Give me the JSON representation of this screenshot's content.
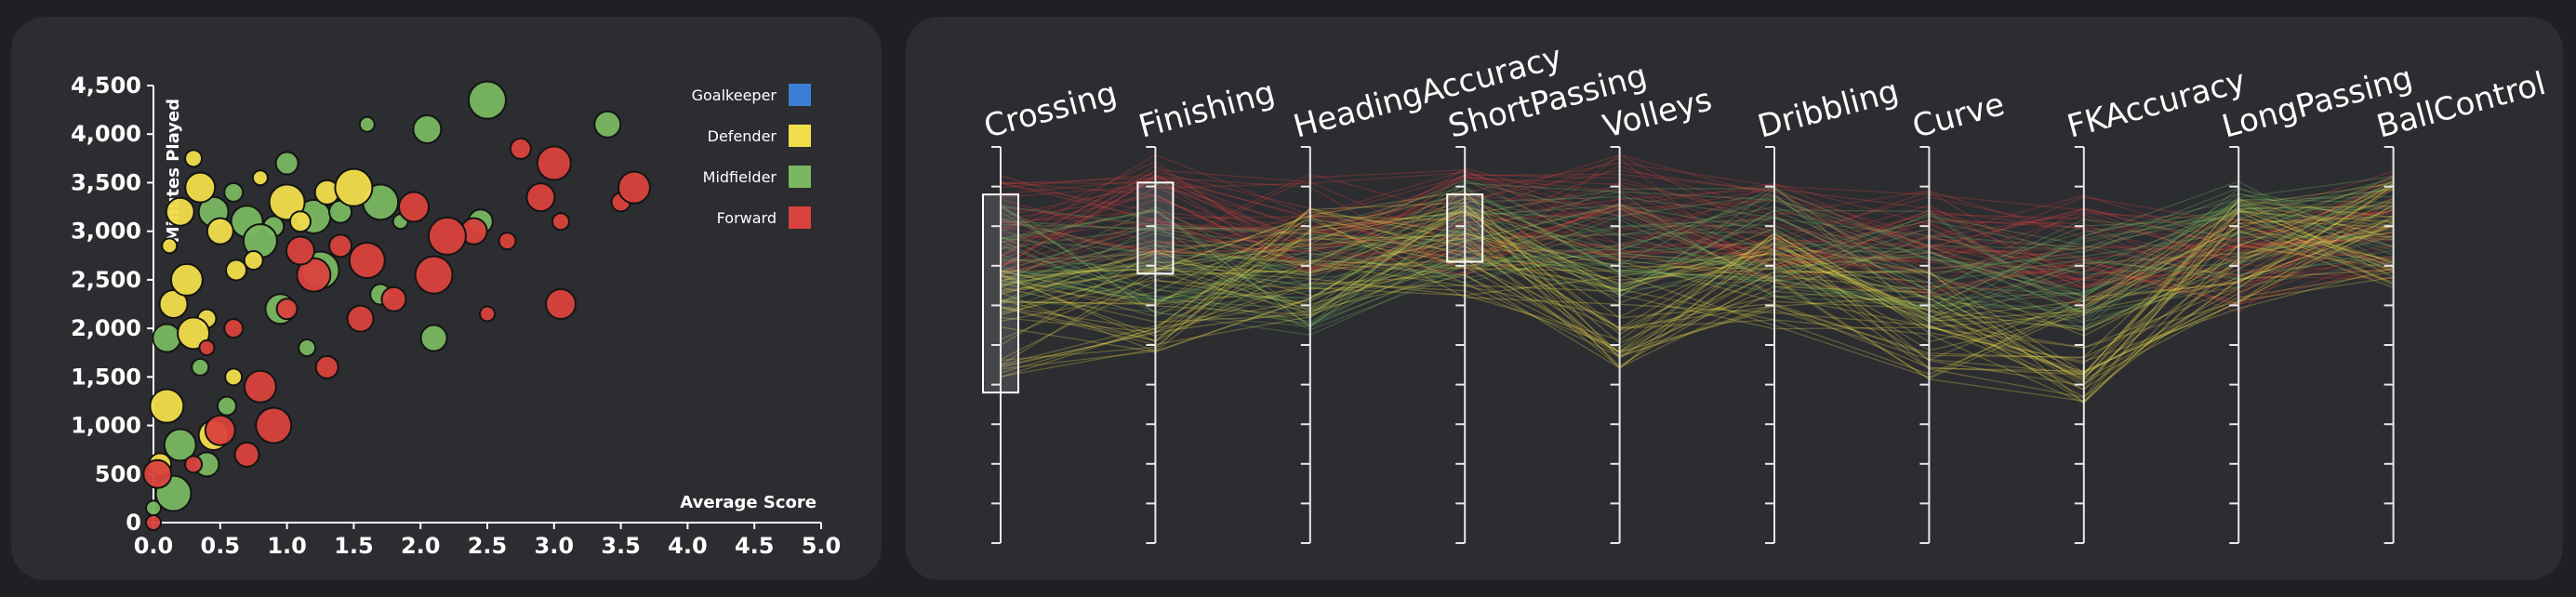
{
  "chart_data": [
    {
      "type": "scatter",
      "xlabel": "Average Score",
      "ylabel": "Minutes Played",
      "xlim": [
        0,
        5
      ],
      "ylim": [
        0,
        4500
      ],
      "x_ticks": [
        "0.0",
        "0.5",
        "1.0",
        "1.5",
        "2.0",
        "2.5",
        "3.0",
        "3.5",
        "4.0",
        "4.5",
        "5.0"
      ],
      "y_ticks": [
        "0",
        "500",
        "1,000",
        "1,500",
        "2,000",
        "2,500",
        "3,000",
        "3,500",
        "4,000",
        "4,500"
      ],
      "legend_position": "top-right",
      "series": [
        {
          "name": "Goalkeeper",
          "color": "#3d7fd6",
          "points": []
        },
        {
          "name": "Defender",
          "color": "#f1dd4b",
          "points": [
            {
              "x": 0.12,
              "y": 2850
            },
            {
              "x": 0.15,
              "y": 2250
            },
            {
              "x": 0.3,
              "y": 3750
            },
            {
              "x": 0.35,
              "y": 3450
            },
            {
              "x": 0.4,
              "y": 2100
            },
            {
              "x": 0.3,
              "y": 1950
            },
            {
              "x": 0.62,
              "y": 2600
            },
            {
              "x": 0.1,
              "y": 1200
            },
            {
              "x": 0.05,
              "y": 600
            },
            {
              "x": 1.0,
              "y": 3300
            },
            {
              "x": 1.3,
              "y": 3400
            },
            {
              "x": 1.5,
              "y": 3450
            },
            {
              "x": 0.5,
              "y": 3000
            },
            {
              "x": 0.8,
              "y": 3550
            },
            {
              "x": 0.2,
              "y": 3200
            },
            {
              "x": 0.6,
              "y": 1500
            },
            {
              "x": 0.45,
              "y": 900
            },
            {
              "x": 0.75,
              "y": 2700
            },
            {
              "x": 0.25,
              "y": 2500
            },
            {
              "x": 1.1,
              "y": 3100
            }
          ]
        },
        {
          "name": "Midfielder",
          "color": "#79b761",
          "points": [
            {
              "x": 0.0,
              "y": 150
            },
            {
              "x": 0.1,
              "y": 1900
            },
            {
              "x": 0.35,
              "y": 1600
            },
            {
              "x": 0.45,
              "y": 3200
            },
            {
              "x": 0.6,
              "y": 3400
            },
            {
              "x": 0.7,
              "y": 3100
            },
            {
              "x": 0.9,
              "y": 3050
            },
            {
              "x": 1.2,
              "y": 3150
            },
            {
              "x": 1.4,
              "y": 3200
            },
            {
              "x": 1.7,
              "y": 3300
            },
            {
              "x": 2.45,
              "y": 3100
            },
            {
              "x": 2.5,
              "y": 4350
            },
            {
              "x": 3.4,
              "y": 4100
            },
            {
              "x": 1.6,
              "y": 4100
            },
            {
              "x": 2.05,
              "y": 4050
            },
            {
              "x": 1.15,
              "y": 1800
            },
            {
              "x": 0.95,
              "y": 2200
            },
            {
              "x": 0.55,
              "y": 1200
            },
            {
              "x": 0.2,
              "y": 800
            },
            {
              "x": 1.7,
              "y": 2350
            },
            {
              "x": 0.8,
              "y": 2900
            },
            {
              "x": 1.0,
              "y": 3700
            },
            {
              "x": 0.15,
              "y": 300
            },
            {
              "x": 0.4,
              "y": 600
            },
            {
              "x": 1.25,
              "y": 2600
            },
            {
              "x": 2.1,
              "y": 1900
            },
            {
              "x": 1.85,
              "y": 3100
            }
          ]
        },
        {
          "name": "Forward",
          "color": "#d9423d",
          "points": [
            {
              "x": 0.0,
              "y": 0
            },
            {
              "x": 0.03,
              "y": 500
            },
            {
              "x": 0.3,
              "y": 600
            },
            {
              "x": 0.5,
              "y": 950
            },
            {
              "x": 0.6,
              "y": 2000
            },
            {
              "x": 0.8,
              "y": 1400
            },
            {
              "x": 1.0,
              "y": 2200
            },
            {
              "x": 1.2,
              "y": 2550
            },
            {
              "x": 1.4,
              "y": 2850
            },
            {
              "x": 1.6,
              "y": 2700
            },
            {
              "x": 1.8,
              "y": 2300
            },
            {
              "x": 2.1,
              "y": 2550
            },
            {
              "x": 2.4,
              "y": 3000
            },
            {
              "x": 2.5,
              "y": 2150
            },
            {
              "x": 2.9,
              "y": 3350
            },
            {
              "x": 3.05,
              "y": 3100
            },
            {
              "x": 3.05,
              "y": 2250
            },
            {
              "x": 3.5,
              "y": 3300
            },
            {
              "x": 3.6,
              "y": 3450
            },
            {
              "x": 2.75,
              "y": 3850
            },
            {
              "x": 3.0,
              "y": 3700
            },
            {
              "x": 1.3,
              "y": 1600
            },
            {
              "x": 0.9,
              "y": 1000
            },
            {
              "x": 0.7,
              "y": 700
            },
            {
              "x": 2.2,
              "y": 2950
            },
            {
              "x": 1.55,
              "y": 2100
            },
            {
              "x": 0.4,
              "y": 1800
            },
            {
              "x": 1.1,
              "y": 2800
            },
            {
              "x": 2.65,
              "y": 2900
            },
            {
              "x": 1.95,
              "y": 3250
            }
          ]
        }
      ]
    },
    {
      "type": "parallel-coordinates",
      "axes": [
        "Crossing",
        "Finishing",
        "HeadingAccuracy",
        "ShortPassing",
        "Volleys",
        "Dribbling",
        "Curve",
        "FKAccuracy",
        "LongPassing",
        "BallControl"
      ],
      "ylim": [
        0,
        1
      ],
      "brushes": [
        {
          "axis": "Crossing",
          "range": [
            0.38,
            0.88
          ]
        },
        {
          "axis": "Finishing",
          "range": [
            0.68,
            0.91
          ]
        },
        {
          "axis": "ShortPassing",
          "range": [
            0.71,
            0.88
          ]
        }
      ],
      "series": [
        {
          "name": "Forward",
          "color": "#d9423d",
          "profile": [
            0.8,
            0.86,
            0.8,
            0.81,
            0.86,
            0.77,
            0.76,
            0.74,
            0.72,
            0.8
          ]
        },
        {
          "name": "Midfielder",
          "color": "#79b761",
          "profile": [
            0.72,
            0.72,
            0.66,
            0.79,
            0.76,
            0.76,
            0.7,
            0.68,
            0.78,
            0.79
          ]
        },
        {
          "name": "Defender",
          "color": "#f1dd4b",
          "profile": [
            0.55,
            0.62,
            0.71,
            0.76,
            0.58,
            0.68,
            0.55,
            0.49,
            0.73,
            0.78
          ]
        }
      ]
    }
  ]
}
